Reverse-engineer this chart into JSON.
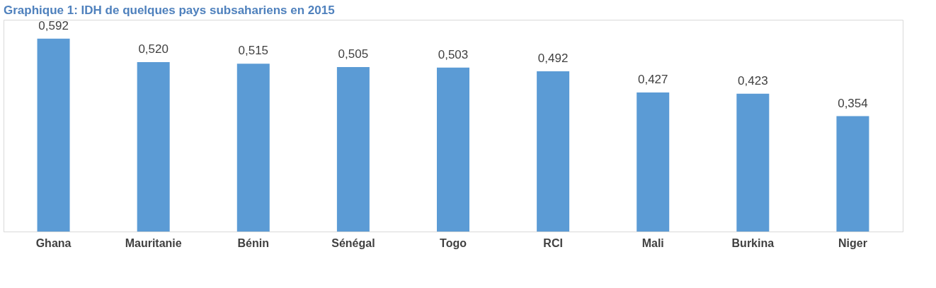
{
  "chart_data": {
    "type": "bar",
    "title": "Graphique 1: IDH de quelques pays subsahariens en 2015",
    "categories": [
      "Ghana",
      "Mauritanie",
      "Bénin",
      "Sénégal",
      "Togo",
      "RCI",
      "Mali",
      "Burkina",
      "Niger"
    ],
    "values": [
      0.592,
      0.52,
      0.515,
      0.505,
      0.503,
      0.492,
      0.427,
      0.423,
      0.354
    ],
    "value_labels": [
      "0,592",
      "0,520",
      "0,515",
      "0,505",
      "0,503",
      "0,492",
      "0,427",
      "0,423",
      "0,354"
    ],
    "color": "#5b9bd5",
    "ylim": [
      0,
      0.65
    ],
    "tick_labels": "x",
    "grid": false
  }
}
